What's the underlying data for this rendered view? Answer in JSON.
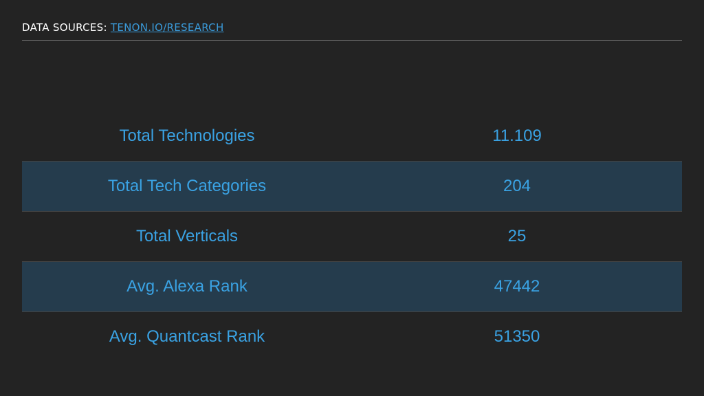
{
  "header": {
    "label": "DATA SOURCES:",
    "link": "TENON.IO/RESEARCH"
  },
  "table": {
    "rows": [
      [
        "Total Technologies",
        "11.109"
      ],
      [
        "Total Tech Categories",
        "204"
      ],
      [
        "Total Verticals",
        "25"
      ],
      [
        "Avg. Alexa Rank",
        "47442"
      ],
      [
        "Avg. Quantcast Rank",
        "51350"
      ]
    ]
  }
}
